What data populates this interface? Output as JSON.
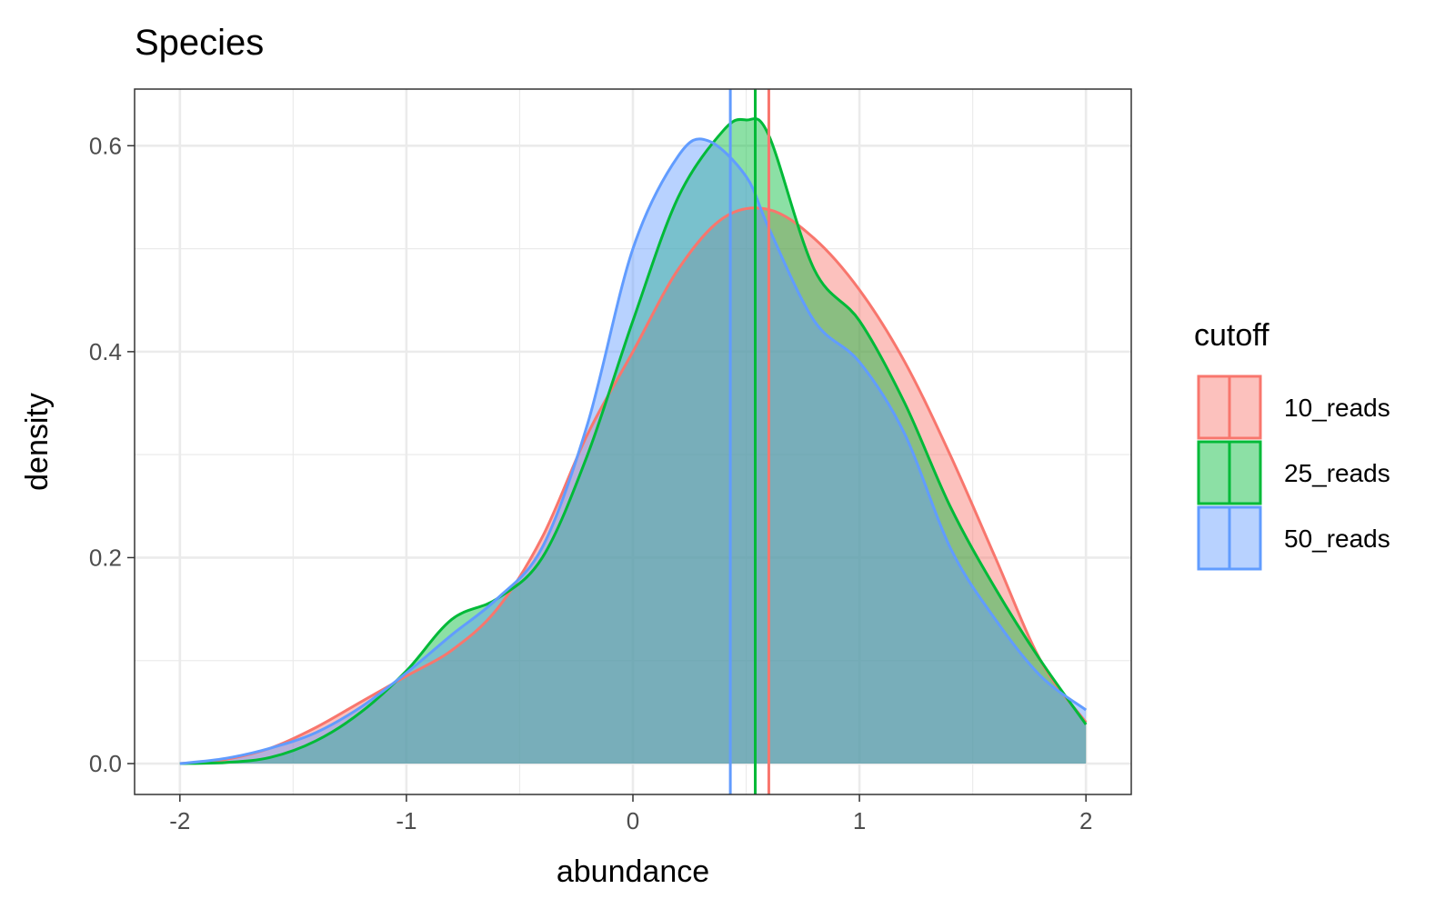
{
  "chart_data": {
    "type": "area",
    "title": "Species",
    "xlabel": "abundance",
    "ylabel": "density",
    "xlim": [
      -2.2,
      2.2
    ],
    "ylim": [
      -0.03,
      0.655
    ],
    "x_ticks": [
      -2,
      -1,
      0,
      1,
      2
    ],
    "x_tick_labels": [
      "-2",
      "-1",
      "0",
      "1",
      "2"
    ],
    "y_ticks": [
      0.0,
      0.2,
      0.4,
      0.6
    ],
    "y_tick_labels": [
      "0.0",
      "0.2",
      "0.4",
      "0.6"
    ],
    "grid": true,
    "legend": {
      "title": "cutoff",
      "placement": "right"
    },
    "series": [
      {
        "name": "10_reads",
        "color": "#F8766D",
        "mean": 0.6,
        "x": [
          -2.0,
          -1.8,
          -1.6,
          -1.4,
          -1.2,
          -1.0,
          -0.8,
          -0.6,
          -0.4,
          -0.2,
          0.0,
          0.2,
          0.4,
          0.6,
          0.8,
          1.0,
          1.2,
          1.4,
          1.6,
          1.8,
          2.0
        ],
        "y": [
          0.0,
          0.004,
          0.015,
          0.035,
          0.06,
          0.085,
          0.11,
          0.15,
          0.22,
          0.32,
          0.4,
          0.48,
          0.53,
          0.538,
          0.51,
          0.46,
          0.39,
          0.3,
          0.2,
          0.1,
          0.04
        ]
      },
      {
        "name": "25_reads",
        "color": "#00BA38",
        "mean": 0.54,
        "x": [
          -2.0,
          -1.8,
          -1.6,
          -1.4,
          -1.2,
          -1.0,
          -0.8,
          -0.6,
          -0.4,
          -0.2,
          0.0,
          0.2,
          0.4,
          0.5,
          0.6,
          0.8,
          1.0,
          1.2,
          1.4,
          1.6,
          1.8,
          2.0
        ],
        "y": [
          0.0,
          0.001,
          0.006,
          0.022,
          0.05,
          0.09,
          0.14,
          0.16,
          0.2,
          0.3,
          0.43,
          0.55,
          0.615,
          0.625,
          0.61,
          0.48,
          0.43,
          0.35,
          0.25,
          0.17,
          0.1,
          0.038
        ]
      },
      {
        "name": "50_reads",
        "color": "#619CFF",
        "mean": 0.43,
        "x": [
          -2.0,
          -1.8,
          -1.6,
          -1.4,
          -1.2,
          -1.0,
          -0.8,
          -0.6,
          -0.4,
          -0.2,
          0.0,
          0.2,
          0.33,
          0.5,
          0.6,
          0.8,
          1.0,
          1.2,
          1.4,
          1.6,
          1.8,
          2.0
        ],
        "y": [
          0.0,
          0.005,
          0.015,
          0.03,
          0.055,
          0.088,
          0.125,
          0.16,
          0.21,
          0.33,
          0.5,
          0.59,
          0.605,
          0.57,
          0.52,
          0.43,
          0.39,
          0.32,
          0.21,
          0.14,
          0.085,
          0.052
        ]
      }
    ]
  }
}
